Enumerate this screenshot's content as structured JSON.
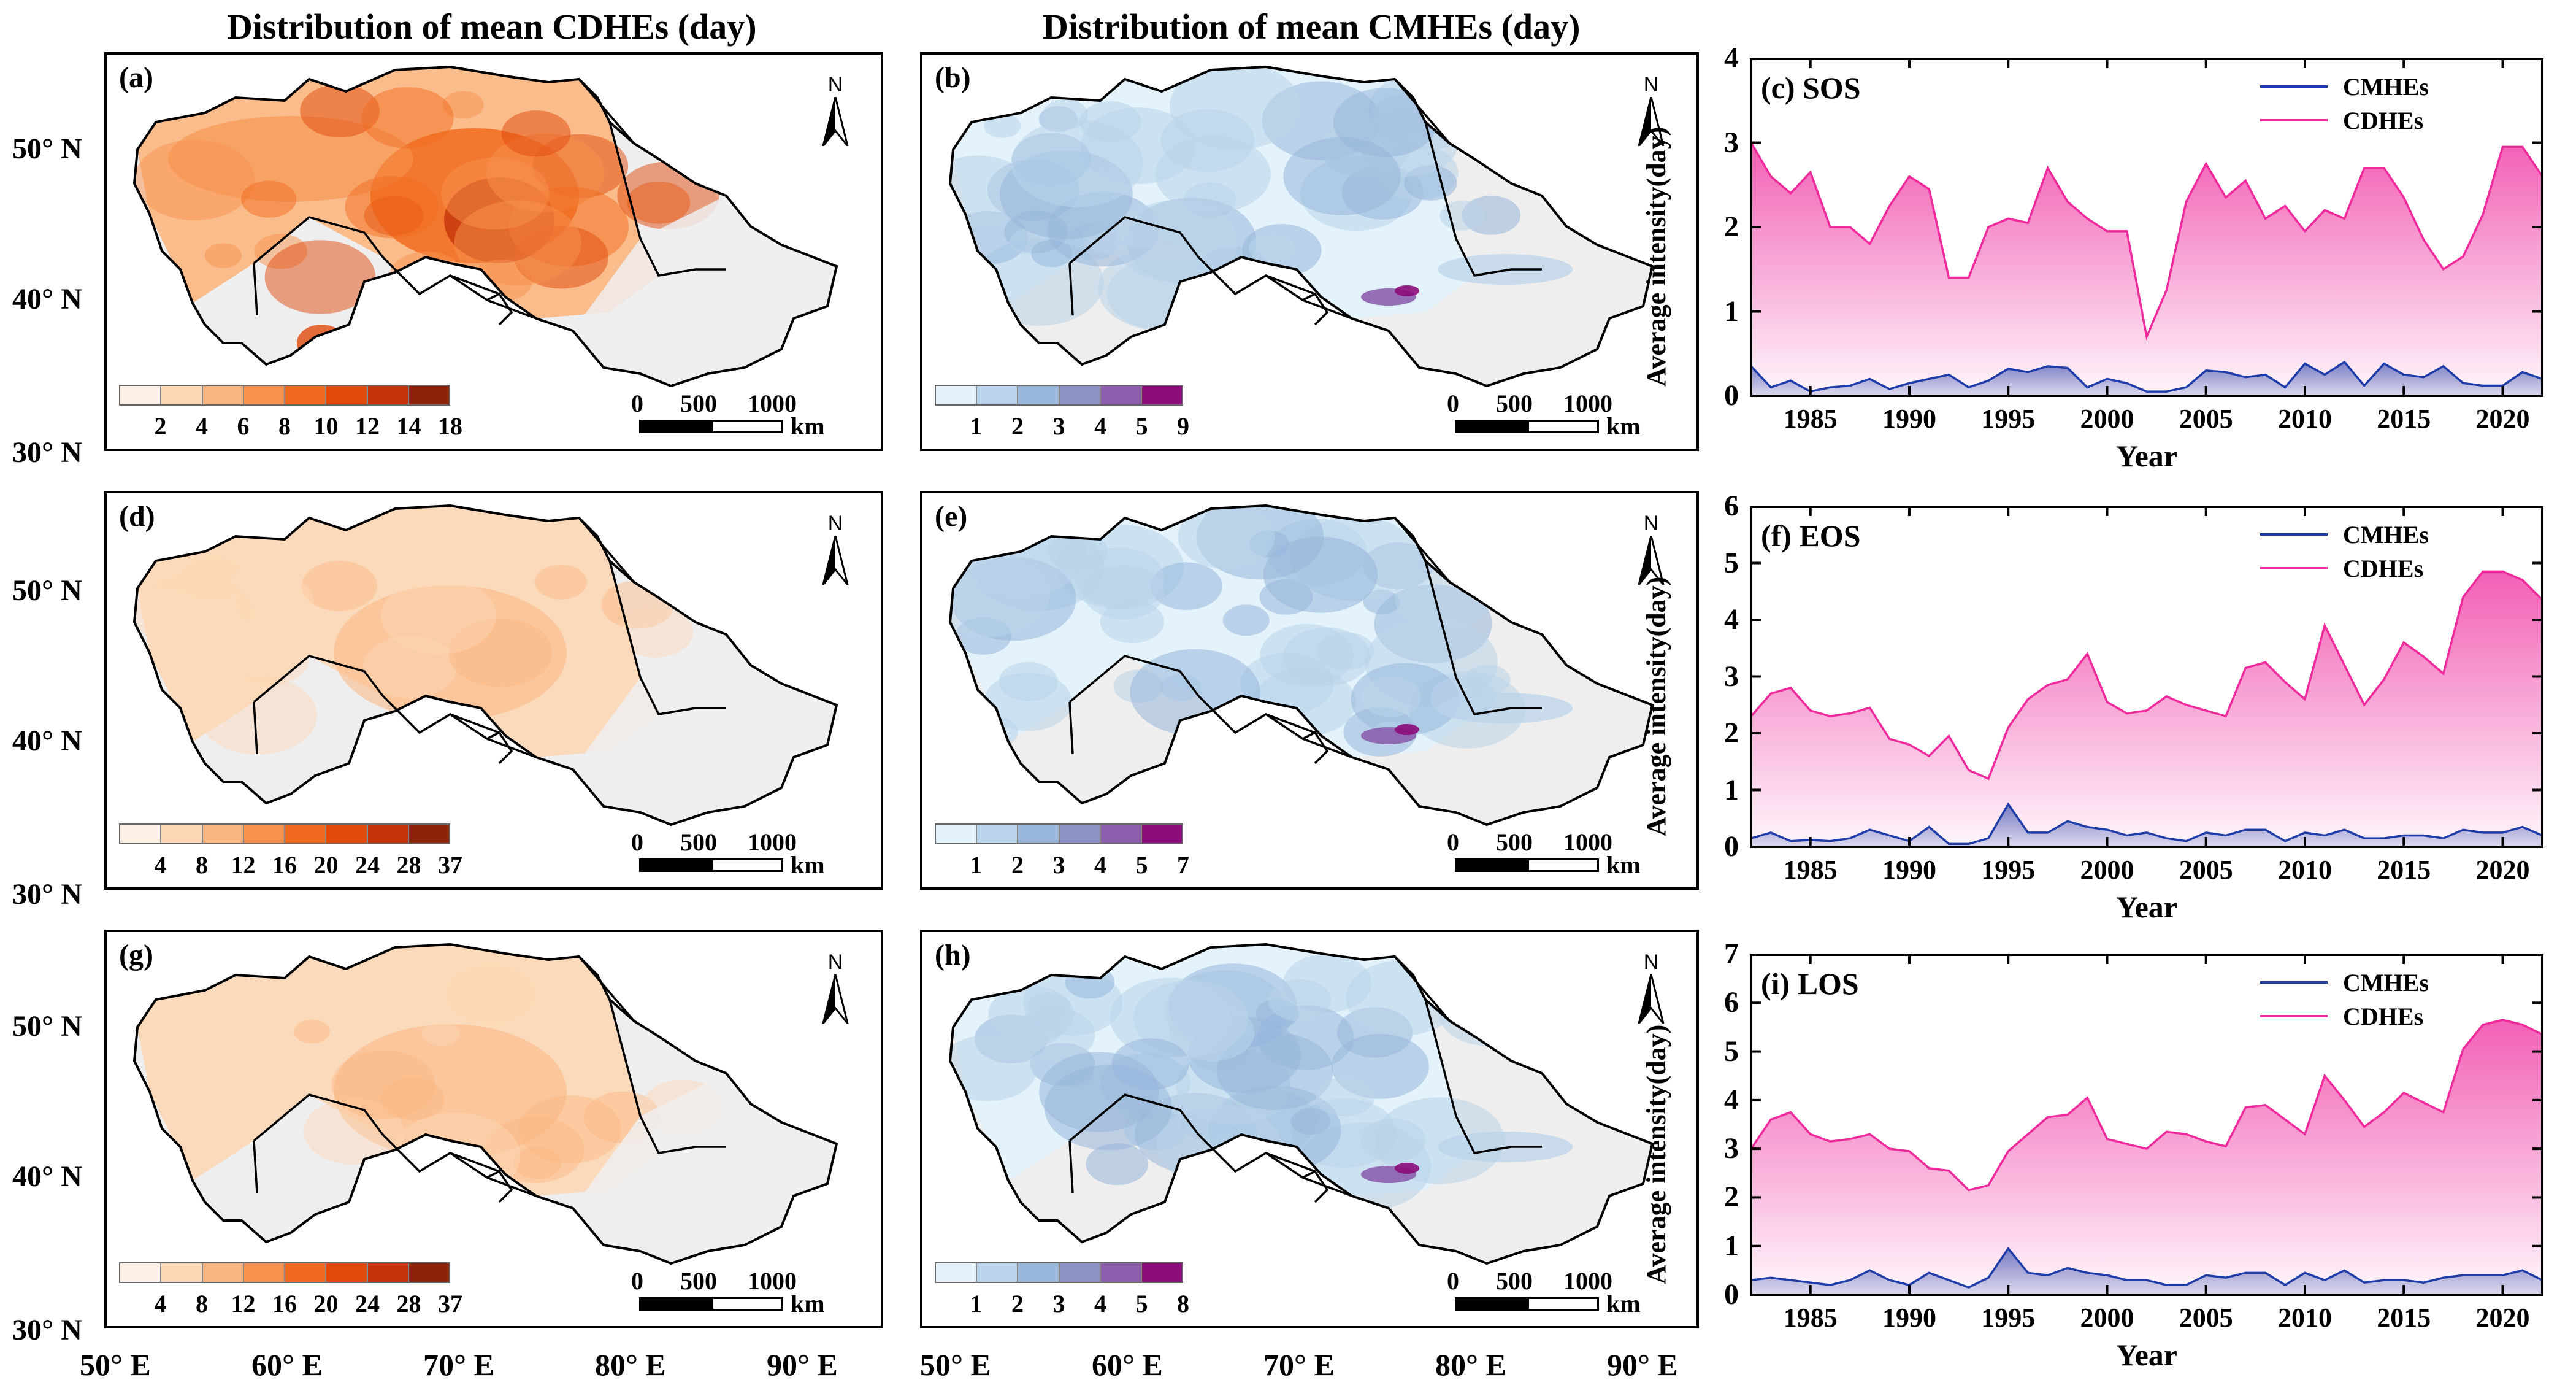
{
  "column_titles": {
    "cdhe": "Distribution of mean CDHEs (day)",
    "cmhe": "Distribution of mean CMHEs (day)"
  },
  "maps": [
    {
      "id": "a",
      "label": "(a)",
      "type": "cdhe",
      "intensity": 1.0,
      "legend": [
        "2",
        "4",
        "6",
        "8",
        "10",
        "12",
        "14",
        "18"
      ]
    },
    {
      "id": "b",
      "label": "(b)",
      "type": "cmhe",
      "intensity": 1.0,
      "legend": [
        "1",
        "2",
        "3",
        "4",
        "5",
        "9"
      ]
    },
    {
      "id": "d",
      "label": "(d)",
      "type": "cdhe",
      "intensity": 0.35,
      "legend": [
        "4",
        "8",
        "12",
        "16",
        "20",
        "24",
        "28",
        "37"
      ]
    },
    {
      "id": "e",
      "label": "(e)",
      "type": "cmhe",
      "intensity": 1.0,
      "legend": [
        "1",
        "2",
        "3",
        "4",
        "5",
        "7"
      ]
    },
    {
      "id": "g",
      "label": "(g)",
      "type": "cdhe",
      "intensity": 0.4,
      "legend": [
        "4",
        "8",
        "12",
        "16",
        "20",
        "24",
        "28",
        "37"
      ]
    },
    {
      "id": "h",
      "label": "(h)",
      "type": "cmhe",
      "intensity": 1.0,
      "legend": [
        "1",
        "2",
        "3",
        "4",
        "5",
        "8"
      ]
    }
  ],
  "north_label": "N",
  "scalebar": {
    "labels": [
      "0",
      "500",
      "1000"
    ],
    "unit": "km"
  },
  "lat_labels": [
    "50° N",
    "40° N",
    "30° N"
  ],
  "lon_labels": [
    "50° E",
    "60° E",
    "70° E",
    "80° E",
    "90° E"
  ],
  "colors": {
    "cdhe": [
      "#fef0e4",
      "#fcd7b6",
      "#fbb680",
      "#f7924e",
      "#f06b1f",
      "#e04a0c",
      "#c4340a",
      "#8c2207"
    ],
    "cmhe": [
      "#e3f2fb",
      "#b9d3ea",
      "#98b7da",
      "#8d93c6",
      "#8c5fae",
      "#8b0b7a"
    ],
    "land": "#eeeeee",
    "cmhe_line": "#1f3da8",
    "cdhe_line": "#ee2a9c"
  },
  "chart_data": [
    {
      "type": "area",
      "title": "(c) SOS",
      "xlabel": "Year",
      "ylabel": "Average intensity(day)",
      "xlim": [
        1982,
        2022
      ],
      "ylim": [
        0,
        4
      ],
      "xticks": [
        1985,
        1990,
        1995,
        2000,
        2005,
        2010,
        2015,
        2020
      ],
      "yticks": [
        0,
        1,
        2,
        3,
        4
      ],
      "legend_position": "top-right",
      "x": [
        1982,
        1983,
        1984,
        1985,
        1986,
        1987,
        1988,
        1989,
        1990,
        1991,
        1992,
        1993,
        1994,
        1995,
        1996,
        1997,
        1998,
        1999,
        2000,
        2001,
        2002,
        2003,
        2004,
        2005,
        2006,
        2007,
        2008,
        2009,
        2010,
        2011,
        2012,
        2013,
        2014,
        2015,
        2016,
        2017,
        2018,
        2019,
        2020,
        2021,
        2022
      ],
      "series": [
        {
          "name": "CMHEs",
          "values": [
            0.35,
            0.1,
            0.18,
            0.05,
            0.1,
            0.12,
            0.2,
            0.08,
            0.15,
            0.2,
            0.25,
            0.1,
            0.18,
            0.32,
            0.28,
            0.35,
            0.33,
            0.1,
            0.2,
            0.15,
            0.05,
            0.05,
            0.1,
            0.3,
            0.28,
            0.22,
            0.25,
            0.1,
            0.38,
            0.25,
            0.4,
            0.12,
            0.38,
            0.25,
            0.22,
            0.35,
            0.15,
            0.12,
            0.12,
            0.28,
            0.2
          ]
        },
        {
          "name": "CDHEs",
          "values": [
            3.0,
            2.6,
            2.4,
            2.65,
            2.0,
            2.0,
            1.8,
            2.25,
            2.6,
            2.45,
            1.4,
            1.4,
            2.0,
            2.1,
            2.05,
            2.7,
            2.3,
            2.1,
            1.95,
            1.95,
            0.7,
            1.25,
            2.3,
            2.75,
            2.35,
            2.55,
            2.1,
            2.25,
            1.95,
            2.2,
            2.1,
            2.7,
            2.7,
            2.35,
            1.85,
            1.5,
            1.65,
            2.15,
            2.95,
            2.95,
            2.6
          ]
        }
      ]
    },
    {
      "type": "area",
      "title": "(f) EOS",
      "xlabel": "Year",
      "ylabel": "Average intensity(day)",
      "xlim": [
        1982,
        2022
      ],
      "ylim": [
        0,
        6
      ],
      "xticks": [
        1985,
        1990,
        1995,
        2000,
        2005,
        2010,
        2015,
        2020
      ],
      "yticks": [
        0,
        1,
        2,
        3,
        4,
        5,
        6
      ],
      "legend_position": "top-right",
      "x": [
        1982,
        1983,
        1984,
        1985,
        1986,
        1987,
        1988,
        1989,
        1990,
        1991,
        1992,
        1993,
        1994,
        1995,
        1996,
        1997,
        1998,
        1999,
        2000,
        2001,
        2002,
        2003,
        2004,
        2005,
        2006,
        2007,
        2008,
        2009,
        2010,
        2011,
        2012,
        2013,
        2014,
        2015,
        2016,
        2017,
        2018,
        2019,
        2020,
        2021,
        2022
      ],
      "series": [
        {
          "name": "CMHEs",
          "values": [
            0.15,
            0.25,
            0.1,
            0.12,
            0.1,
            0.15,
            0.3,
            0.2,
            0.1,
            0.35,
            0.05,
            0.05,
            0.15,
            0.75,
            0.25,
            0.25,
            0.45,
            0.35,
            0.3,
            0.2,
            0.25,
            0.15,
            0.1,
            0.25,
            0.2,
            0.3,
            0.3,
            0.1,
            0.25,
            0.2,
            0.3,
            0.15,
            0.15,
            0.2,
            0.2,
            0.15,
            0.3,
            0.25,
            0.25,
            0.35,
            0.2
          ]
        },
        {
          "name": "CDHEs",
          "values": [
            2.3,
            2.7,
            2.8,
            2.4,
            2.3,
            2.35,
            2.45,
            1.9,
            1.8,
            1.6,
            1.95,
            1.35,
            1.2,
            2.1,
            2.6,
            2.85,
            2.95,
            3.4,
            2.55,
            2.35,
            2.4,
            2.65,
            2.5,
            2.4,
            2.3,
            3.15,
            3.25,
            2.9,
            2.6,
            3.9,
            3.2,
            2.5,
            2.95,
            3.6,
            3.35,
            3.05,
            4.4,
            4.85,
            4.85,
            4.7,
            4.35
          ]
        }
      ]
    },
    {
      "type": "area",
      "title": "(i) LOS",
      "xlabel": "Year",
      "ylabel": "Average intensity(day)",
      "xlim": [
        1982,
        2022
      ],
      "ylim": [
        0,
        7
      ],
      "xticks": [
        1985,
        1990,
        1995,
        2000,
        2005,
        2010,
        2015,
        2020
      ],
      "yticks": [
        0,
        1,
        2,
        3,
        4,
        5,
        6,
        7
      ],
      "legend_position": "top-right",
      "x": [
        1982,
        1983,
        1984,
        1985,
        1986,
        1987,
        1988,
        1989,
        1990,
        1991,
        1992,
        1993,
        1994,
        1995,
        1996,
        1997,
        1998,
        1999,
        2000,
        2001,
        2002,
        2003,
        2004,
        2005,
        2006,
        2007,
        2008,
        2009,
        2010,
        2011,
        2012,
        2013,
        2014,
        2015,
        2016,
        2017,
        2018,
        2019,
        2020,
        2021,
        2022
      ],
      "series": [
        {
          "name": "CMHEs",
          "values": [
            0.3,
            0.35,
            0.3,
            0.25,
            0.2,
            0.3,
            0.5,
            0.3,
            0.2,
            0.45,
            0.3,
            0.15,
            0.35,
            0.95,
            0.45,
            0.4,
            0.55,
            0.45,
            0.4,
            0.3,
            0.3,
            0.2,
            0.2,
            0.4,
            0.35,
            0.45,
            0.45,
            0.2,
            0.45,
            0.3,
            0.5,
            0.25,
            0.3,
            0.3,
            0.25,
            0.35,
            0.4,
            0.4,
            0.4,
            0.5,
            0.3
          ]
        },
        {
          "name": "CDHEs",
          "values": [
            3.0,
            3.6,
            3.75,
            3.3,
            3.15,
            3.2,
            3.3,
            3.0,
            2.95,
            2.6,
            2.55,
            2.15,
            2.25,
            2.95,
            3.3,
            3.65,
            3.7,
            4.05,
            3.2,
            3.1,
            3.0,
            3.35,
            3.3,
            3.15,
            3.05,
            3.85,
            3.9,
            3.6,
            3.3,
            4.5,
            4.0,
            3.45,
            3.75,
            4.15,
            3.95,
            3.75,
            5.05,
            5.55,
            5.65,
            5.55,
            5.35
          ]
        }
      ]
    }
  ]
}
